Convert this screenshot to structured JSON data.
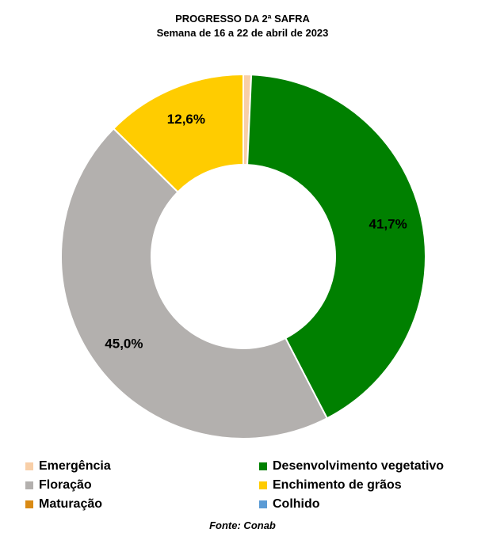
{
  "chart_data": {
    "type": "pie",
    "donut": true,
    "title": "PROGRESSO DA 2ª SAFRA",
    "subtitle": "Semana de 16 a 22 de abril de 2023",
    "slices": [
      {
        "name": "Emergência",
        "value": 0.7,
        "label": "",
        "color": "#f8cfa8"
      },
      {
        "name": "Desenvolvimento vegetativo",
        "value": 41.7,
        "label": "41,7%",
        "color": "#008000"
      },
      {
        "name": "Floração",
        "value": 45.0,
        "label": "45,0%",
        "color": "#b3b0ae"
      },
      {
        "name": "Enchimento de grãos",
        "value": 12.6,
        "label": "12,6%",
        "color": "#ffcc00"
      },
      {
        "name": "Maturação",
        "value": 0,
        "label": "",
        "color": "#d98a14"
      },
      {
        "name": "Colhido",
        "value": 0,
        "label": "",
        "color": "#5b9bd5"
      }
    ],
    "legend_position": "bottom",
    "source": "Fonte: Conab"
  }
}
